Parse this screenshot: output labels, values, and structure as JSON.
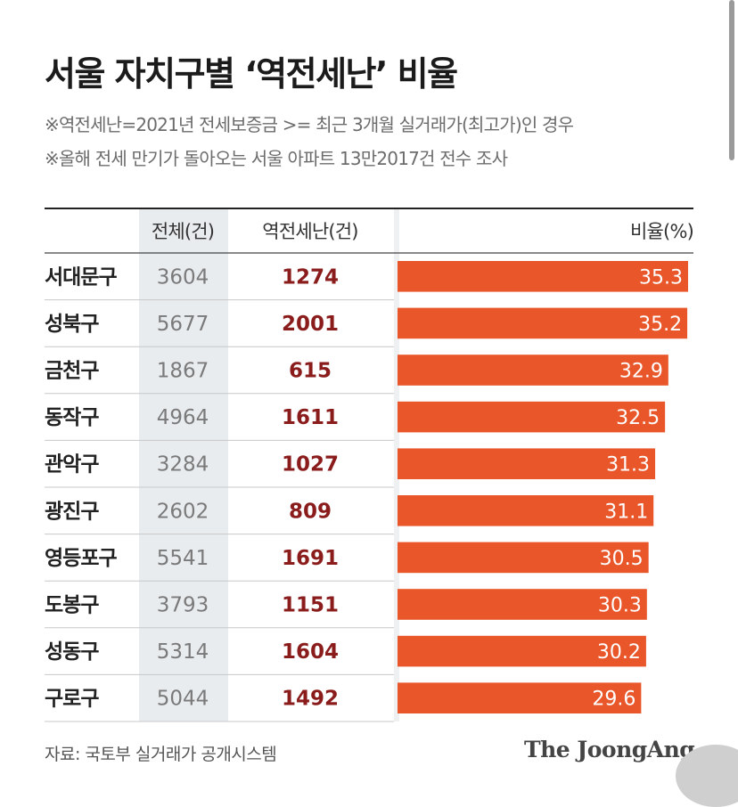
{
  "title": "서울 자치구별 ‘역전세난’ 비율",
  "notes": [
    "※역전세난=2021년 전세보증금 >= 최근 3개월 실거래가(최고가)인 경우",
    "※올해 전세 만기가 돌아오는 서울 아파트 13만2017건 전수 조사"
  ],
  "source": "자료: 국토부 실거래가 공개시스템",
  "brand": "The JoongAng",
  "colors": {
    "bar": "#e8562a",
    "highlight_column": "#e9ecef",
    "count_text": "#8a1c1c",
    "total_text": "#7a7a7a",
    "district_text": "#222222"
  },
  "chart_data": {
    "type": "table",
    "columns": [
      "전체(건)",
      "역전세난(건)",
      "비율(%)"
    ],
    "rows": [
      {
        "district": "서대문구",
        "total": 3604,
        "count": 1274,
        "ratio": 35.3,
        "ratio_label": "35.3"
      },
      {
        "district": "성북구",
        "total": 5677,
        "count": 2001,
        "ratio": 35.2,
        "ratio_label": "35.2"
      },
      {
        "district": "금천구",
        "total": 1867,
        "count": 615,
        "ratio": 32.9,
        "ratio_label": "32.9"
      },
      {
        "district": "동작구",
        "total": 4964,
        "count": 1611,
        "ratio": 32.5,
        "ratio_label": "32.5"
      },
      {
        "district": "관악구",
        "total": 3284,
        "count": 1027,
        "ratio": 31.3,
        "ratio_label": "31.3"
      },
      {
        "district": "광진구",
        "total": 2602,
        "count": 809,
        "ratio": 31.1,
        "ratio_label": "31.1"
      },
      {
        "district": "영등포구",
        "total": 5541,
        "count": 1691,
        "ratio": 30.5,
        "ratio_label": "30.5"
      },
      {
        "district": "도봉구",
        "total": 3793,
        "count": 1151,
        "ratio": 30.3,
        "ratio_label": "30.3"
      },
      {
        "district": "성동구",
        "total": 5314,
        "count": 1604,
        "ratio": 30.2,
        "ratio_label": "30.2"
      },
      {
        "district": "구로구",
        "total": 5044,
        "count": 1492,
        "ratio": 29.6,
        "ratio_label": "29.6"
      }
    ]
  }
}
